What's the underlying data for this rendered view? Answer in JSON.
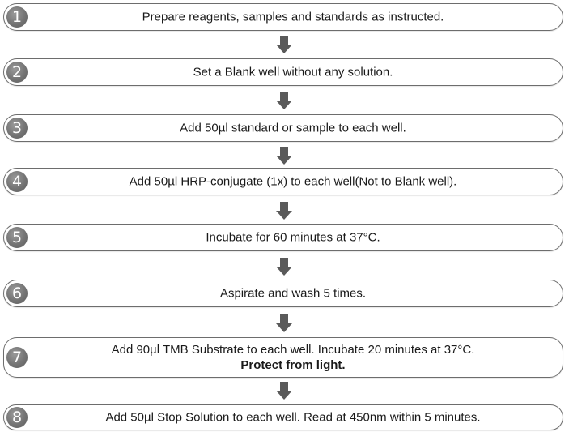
{
  "steps": [
    {
      "number": "1",
      "text": "Prepare reagents, samples and standards as instructed."
    },
    {
      "number": "2",
      "text": "Set a Blank well without any solution."
    },
    {
      "number": "3",
      "text": "Add 50µl standard or sample to each well."
    },
    {
      "number": "4",
      "text": "Add 50µl HRP-conjugate (1x) to each well(Not to Blank well)."
    },
    {
      "number": "5",
      "text": "Incubate for 60 minutes at 37°C."
    },
    {
      "number": "6",
      "text": "Aspirate and wash 5 times."
    },
    {
      "number": "7",
      "text": "Add 90µl TMB Substrate to each well. Incubate 20 minutes at 37°C.",
      "emphasis": "Protect from light."
    },
    {
      "number": "8",
      "text": "Add 50µl Stop Solution to each well. Read at 450nm within 5 minutes."
    }
  ],
  "colors": {
    "border": "#6d6d6d",
    "badge": "#747474",
    "arrow": "#5a5a5a",
    "text": "#1a1a1a"
  },
  "icons": {
    "connector": "down-arrow-icon"
  }
}
